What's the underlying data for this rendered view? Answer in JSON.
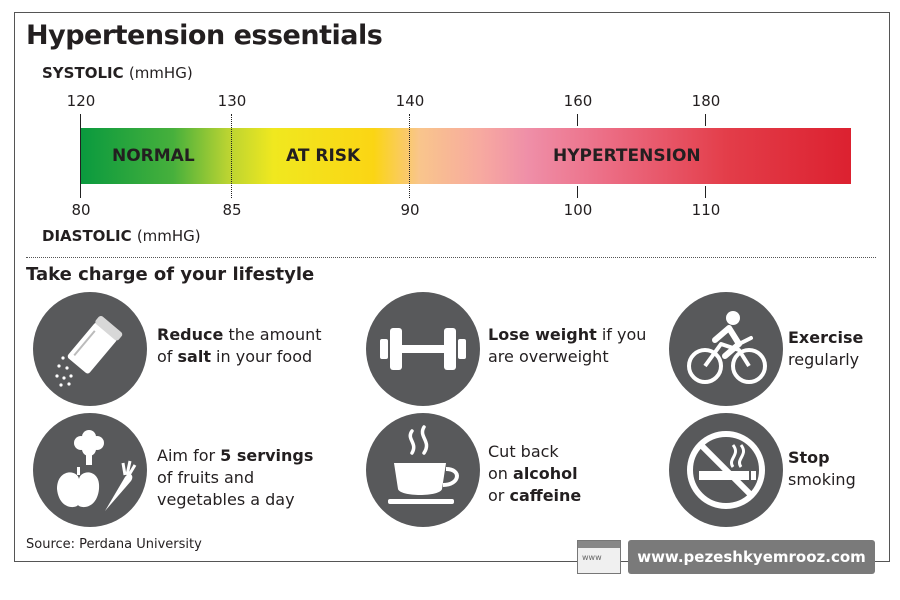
{
  "title": "Hypertension essentials",
  "systolic": {
    "label": "SYSTOLIC",
    "unit": "(mmHG)"
  },
  "diastolic": {
    "label": "DIASTOLIC",
    "unit": "(mmHG)"
  },
  "scale": {
    "systolic_ticks": [
      "120",
      "130",
      "140",
      "160",
      "180"
    ],
    "diastolic_ticks": [
      "80",
      "85",
      "90",
      "100",
      "110"
    ],
    "zones": [
      "NORMAL",
      "AT RISK",
      "HYPERTENSION"
    ]
  },
  "lifestyle": {
    "heading": "Take charge of your lifestyle",
    "tips": [
      {
        "icon": "salt-shaker-icon",
        "parts": [
          [
            "b",
            "Reduce"
          ],
          [
            "t",
            " the amount"
          ],
          [
            "br"
          ],
          [
            "t",
            "of "
          ],
          [
            "b",
            "salt"
          ],
          [
            "t",
            " in your food"
          ]
        ]
      },
      {
        "icon": "dumbbell-icon",
        "parts": [
          [
            "b",
            "Lose weight"
          ],
          [
            "t",
            " if you"
          ],
          [
            "br"
          ],
          [
            "t",
            "are overweight"
          ]
        ]
      },
      {
        "icon": "cyclist-icon",
        "parts": [
          [
            "b",
            "Exercise"
          ],
          [
            "br"
          ],
          [
            "t",
            "regularly"
          ]
        ]
      },
      {
        "icon": "fruits-vegetables-icon",
        "parts": [
          [
            "t",
            "Aim for "
          ],
          [
            "b",
            "5 servings"
          ],
          [
            "br"
          ],
          [
            "t",
            "of fruits and"
          ],
          [
            "br"
          ],
          [
            "t",
            "vegetables a day"
          ]
        ]
      },
      {
        "icon": "coffee-cup-icon",
        "parts": [
          [
            "t",
            "Cut back"
          ],
          [
            "br"
          ],
          [
            "t",
            "on "
          ],
          [
            "b",
            "alcohol"
          ],
          [
            "br"
          ],
          [
            "t",
            "or "
          ],
          [
            "b",
            "caffeine"
          ]
        ]
      },
      {
        "icon": "no-smoking-icon",
        "parts": [
          [
            "b",
            "Stop"
          ],
          [
            "br"
          ],
          [
            "t",
            "smoking"
          ]
        ]
      }
    ]
  },
  "source": "Source: Perdana University",
  "watermark": {
    "icon_text": "www",
    "url": "www.pezeshkyemrooz.com"
  },
  "colors": {
    "normal": "#0a9a3e",
    "at_risk": "#f0e81f",
    "hypertension": "#dc2130",
    "icon_bg": "#58595b"
  }
}
